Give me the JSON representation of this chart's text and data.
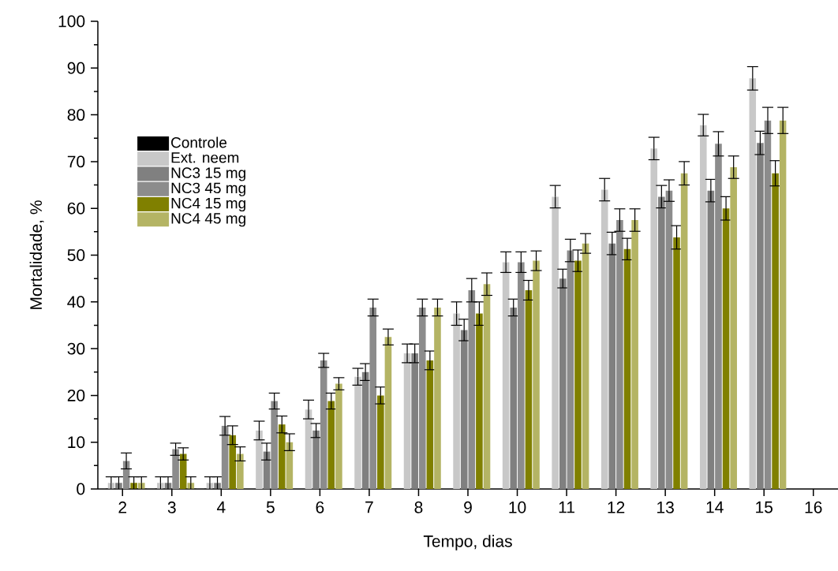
{
  "chart_data": {
    "type": "bar",
    "xlabel": "Tempo, dias",
    "ylabel": "Mortalidade, %",
    "x": [
      2,
      3,
      4,
      5,
      6,
      7,
      8,
      9,
      10,
      11,
      12,
      13,
      14,
      15
    ],
    "xlim": [
      1.5,
      16.5
    ],
    "xticks": [
      2,
      3,
      4,
      5,
      6,
      7,
      8,
      9,
      10,
      11,
      12,
      13,
      14,
      15,
      16
    ],
    "ylim": [
      0,
      100
    ],
    "yticks": [
      0,
      10,
      20,
      30,
      40,
      50,
      60,
      70,
      80,
      90,
      100
    ],
    "legend": "left",
    "series": [
      {
        "name": "Controle",
        "color": "#000000",
        "values": [
          0,
          0,
          0,
          0,
          0,
          0,
          0,
          0,
          0,
          0,
          0,
          0,
          0,
          0
        ]
      },
      {
        "name": "Ext. neem",
        "color": "#c8c8c8",
        "values": [
          1.3,
          1.3,
          1.3,
          12.5,
          17,
          24,
          29,
          37.5,
          48.5,
          62.5,
          64,
          72.8,
          77.8,
          87.8
        ],
        "errors": [
          1.3,
          1.3,
          1.3,
          2,
          2,
          1.8,
          2,
          2.5,
          2.2,
          2.4,
          2.4,
          2.4,
          2.3,
          2.5
        ]
      },
      {
        "name": "NC3 15 mg",
        "color": "#808080",
        "values": [
          1.3,
          1.3,
          1.3,
          8,
          12.5,
          25,
          29,
          34,
          38.8,
          45,
          52.5,
          62.5,
          63.8,
          74
        ],
        "errors": [
          1.3,
          1.3,
          1.3,
          1.8,
          1.5,
          1.8,
          2,
          2.3,
          1.8,
          2,
          2.4,
          2.4,
          2.4,
          2.5
        ]
      },
      {
        "name": "NC3 45 mg",
        "color": "#8c8c8c",
        "values": [
          6,
          8.5,
          13.5,
          18.8,
          27.5,
          38.8,
          38.8,
          42.5,
          48.5,
          51,
          57.5,
          63.8,
          73.8,
          78.8
        ],
        "errors": [
          1.7,
          1.3,
          2,
          1.7,
          1.5,
          1.8,
          1.8,
          2.5,
          2.2,
          2.4,
          2.4,
          2.3,
          2.6,
          2.8
        ]
      },
      {
        "name": "NC4 15 mg",
        "color": "#808000",
        "values": [
          1.3,
          7.5,
          11.5,
          13.8,
          18.8,
          20,
          27.5,
          37.5,
          42.5,
          48.8,
          51.3,
          53.8,
          60,
          67.5
        ],
        "errors": [
          1.3,
          1.3,
          2,
          1.8,
          1.7,
          1.8,
          2,
          2.5,
          2.1,
          2.3,
          2.3,
          2.5,
          2.5,
          2.7
        ]
      },
      {
        "name": "NC4 45 mg",
        "color": "#b4b464",
        "values": [
          1.3,
          1.3,
          7.5,
          10,
          22.5,
          32.5,
          38.8,
          43.8,
          48.8,
          52.5,
          57.5,
          67.5,
          68.8,
          78.8
        ],
        "errors": [
          1.3,
          1.3,
          1.5,
          1.8,
          1.3,
          1.7,
          1.8,
          2.4,
          2.1,
          2.1,
          2.4,
          2.5,
          2.4,
          2.8
        ]
      }
    ]
  }
}
